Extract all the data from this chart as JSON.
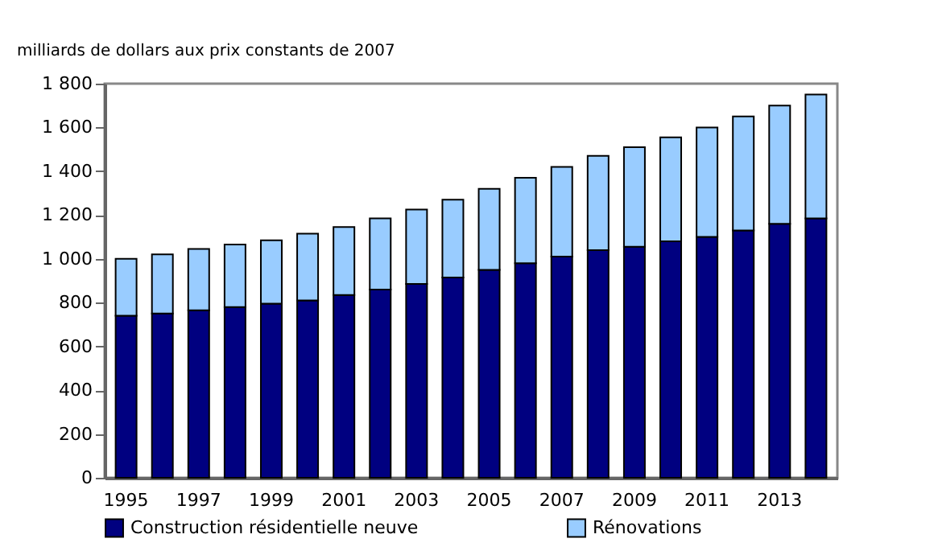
{
  "chart_data": {
    "type": "bar",
    "stacked": true,
    "ylabel": "milliards de dollars aux prix constants de 2007",
    "categories": [
      "1995",
      null,
      "1997",
      null,
      "1999",
      null,
      "2001",
      null,
      "2003",
      null,
      "2005",
      null,
      "2007",
      null,
      "2009",
      null,
      "2011",
      null,
      "2013",
      null
    ],
    "series": [
      {
        "name": "Construction résidentielle neuve",
        "color": "#000080",
        "values": [
          740,
          750,
          765,
          780,
          795,
          810,
          835,
          860,
          885,
          915,
          950,
          980,
          1010,
          1040,
          1055,
          1080,
          1100,
          1130,
          1160,
          1185
        ]
      },
      {
        "name": "Rénovations",
        "color": "#99ccff",
        "values": [
          260,
          270,
          280,
          285,
          290,
          305,
          310,
          325,
          340,
          355,
          370,
          390,
          410,
          430,
          455,
          475,
          500,
          520,
          540,
          565
        ]
      }
    ],
    "ylim": [
      0,
      1800
    ],
    "yticks": [
      0,
      200,
      400,
      600,
      800,
      {
        "value": 1000,
        "label": "1 000"
      },
      {
        "value": 1200,
        "label": "1 200"
      },
      {
        "value": 1400,
        "label": "1 400"
      },
      {
        "value": 1600,
        "label": "1 600"
      },
      {
        "value": 1800,
        "label": "1 800"
      }
    ],
    "grid": false,
    "legend": "bottom"
  }
}
